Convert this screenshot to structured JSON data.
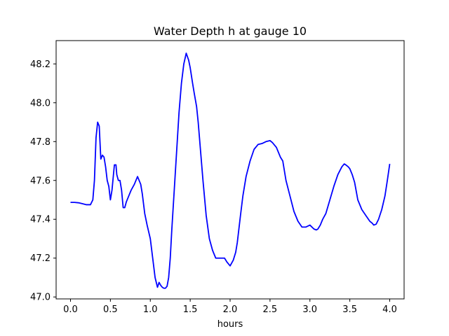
{
  "chart_data": {
    "type": "line",
    "title": "Water Depth h at gauge 10",
    "xlabel": "hours",
    "ylabel": "",
    "xlim": [
      -0.18,
      4.18
    ],
    "ylim": [
      46.99,
      48.32
    ],
    "xticks": [
      0.0,
      0.5,
      1.0,
      1.5,
      2.0,
      2.5,
      3.0,
      3.5,
      4.0
    ],
    "xtick_labels": [
      "0.0",
      "0.5",
      "1.0",
      "1.5",
      "2.0",
      "2.5",
      "3.0",
      "3.5",
      "4.0"
    ],
    "yticks": [
      47.0,
      47.2,
      47.4,
      47.6,
      47.8,
      48.0,
      48.2
    ],
    "ytick_labels": [
      "47.0",
      "47.2",
      "47.4",
      "47.6",
      "47.8",
      "48.0",
      "48.2"
    ],
    "grid": false,
    "legend": "none",
    "series": [
      {
        "color": "#0000ff",
        "x": [
          0.0,
          0.05,
          0.1,
          0.15,
          0.2,
          0.25,
          0.28,
          0.3,
          0.32,
          0.34,
          0.36,
          0.38,
          0.4,
          0.42,
          0.44,
          0.46,
          0.48,
          0.5,
          0.52,
          0.55,
          0.57,
          0.58,
          0.6,
          0.62,
          0.64,
          0.66,
          0.68,
          0.7,
          0.73,
          0.76,
          0.8,
          0.84,
          0.88,
          0.9,
          0.93,
          0.96,
          1.0,
          1.03,
          1.06,
          1.09,
          1.11,
          1.13,
          1.15,
          1.17,
          1.19,
          1.21,
          1.23,
          1.25,
          1.27,
          1.3,
          1.33,
          1.36,
          1.39,
          1.42,
          1.45,
          1.48,
          1.5,
          1.53,
          1.55,
          1.58,
          1.6,
          1.63,
          1.66,
          1.7,
          1.74,
          1.78,
          1.82,
          1.86,
          1.9,
          1.93,
          1.96,
          2.0,
          2.04,
          2.07,
          2.09,
          2.11,
          2.13,
          2.16,
          2.2,
          2.25,
          2.3,
          2.35,
          2.4,
          2.45,
          2.5,
          2.53,
          2.56,
          2.58,
          2.6,
          2.63,
          2.66,
          2.7,
          2.75,
          2.8,
          2.85,
          2.9,
          2.95,
          3.0,
          3.05,
          3.08,
          3.1,
          3.13,
          3.16,
          3.2,
          3.25,
          3.3,
          3.35,
          3.4,
          3.43,
          3.45,
          3.48,
          3.5,
          3.53,
          3.56,
          3.6,
          3.65,
          3.7,
          3.75,
          3.78,
          3.8,
          3.83,
          3.86,
          3.9,
          3.94,
          3.97,
          4.0
        ],
        "y": [
          47.487,
          47.487,
          47.485,
          47.48,
          47.475,
          47.475,
          47.5,
          47.6,
          47.82,
          47.9,
          47.88,
          47.71,
          47.73,
          47.72,
          47.67,
          47.6,
          47.57,
          47.5,
          47.55,
          47.68,
          47.68,
          47.63,
          47.6,
          47.6,
          47.55,
          47.46,
          47.46,
          47.49,
          47.52,
          47.55,
          47.58,
          47.62,
          47.58,
          47.53,
          47.43,
          47.37,
          47.3,
          47.2,
          47.1,
          47.05,
          47.075,
          47.06,
          47.05,
          47.045,
          47.045,
          47.055,
          47.1,
          47.2,
          47.35,
          47.55,
          47.75,
          47.95,
          48.1,
          48.2,
          48.255,
          48.22,
          48.18,
          48.1,
          48.05,
          47.98,
          47.9,
          47.75,
          47.6,
          47.42,
          47.3,
          47.24,
          47.2,
          47.2,
          47.2,
          47.2,
          47.18,
          47.16,
          47.19,
          47.23,
          47.28,
          47.35,
          47.42,
          47.52,
          47.62,
          47.7,
          47.76,
          47.785,
          47.79,
          47.8,
          47.805,
          47.795,
          47.78,
          47.77,
          47.75,
          47.72,
          47.7,
          47.6,
          47.52,
          47.44,
          47.39,
          47.36,
          47.36,
          47.37,
          47.35,
          47.345,
          47.35,
          47.37,
          47.4,
          47.43,
          47.5,
          47.57,
          47.63,
          47.67,
          47.685,
          47.68,
          47.67,
          47.66,
          47.63,
          47.59,
          47.5,
          47.45,
          47.42,
          47.39,
          47.38,
          47.37,
          47.375,
          47.4,
          47.45,
          47.52,
          47.6,
          47.685
        ]
      }
    ]
  }
}
